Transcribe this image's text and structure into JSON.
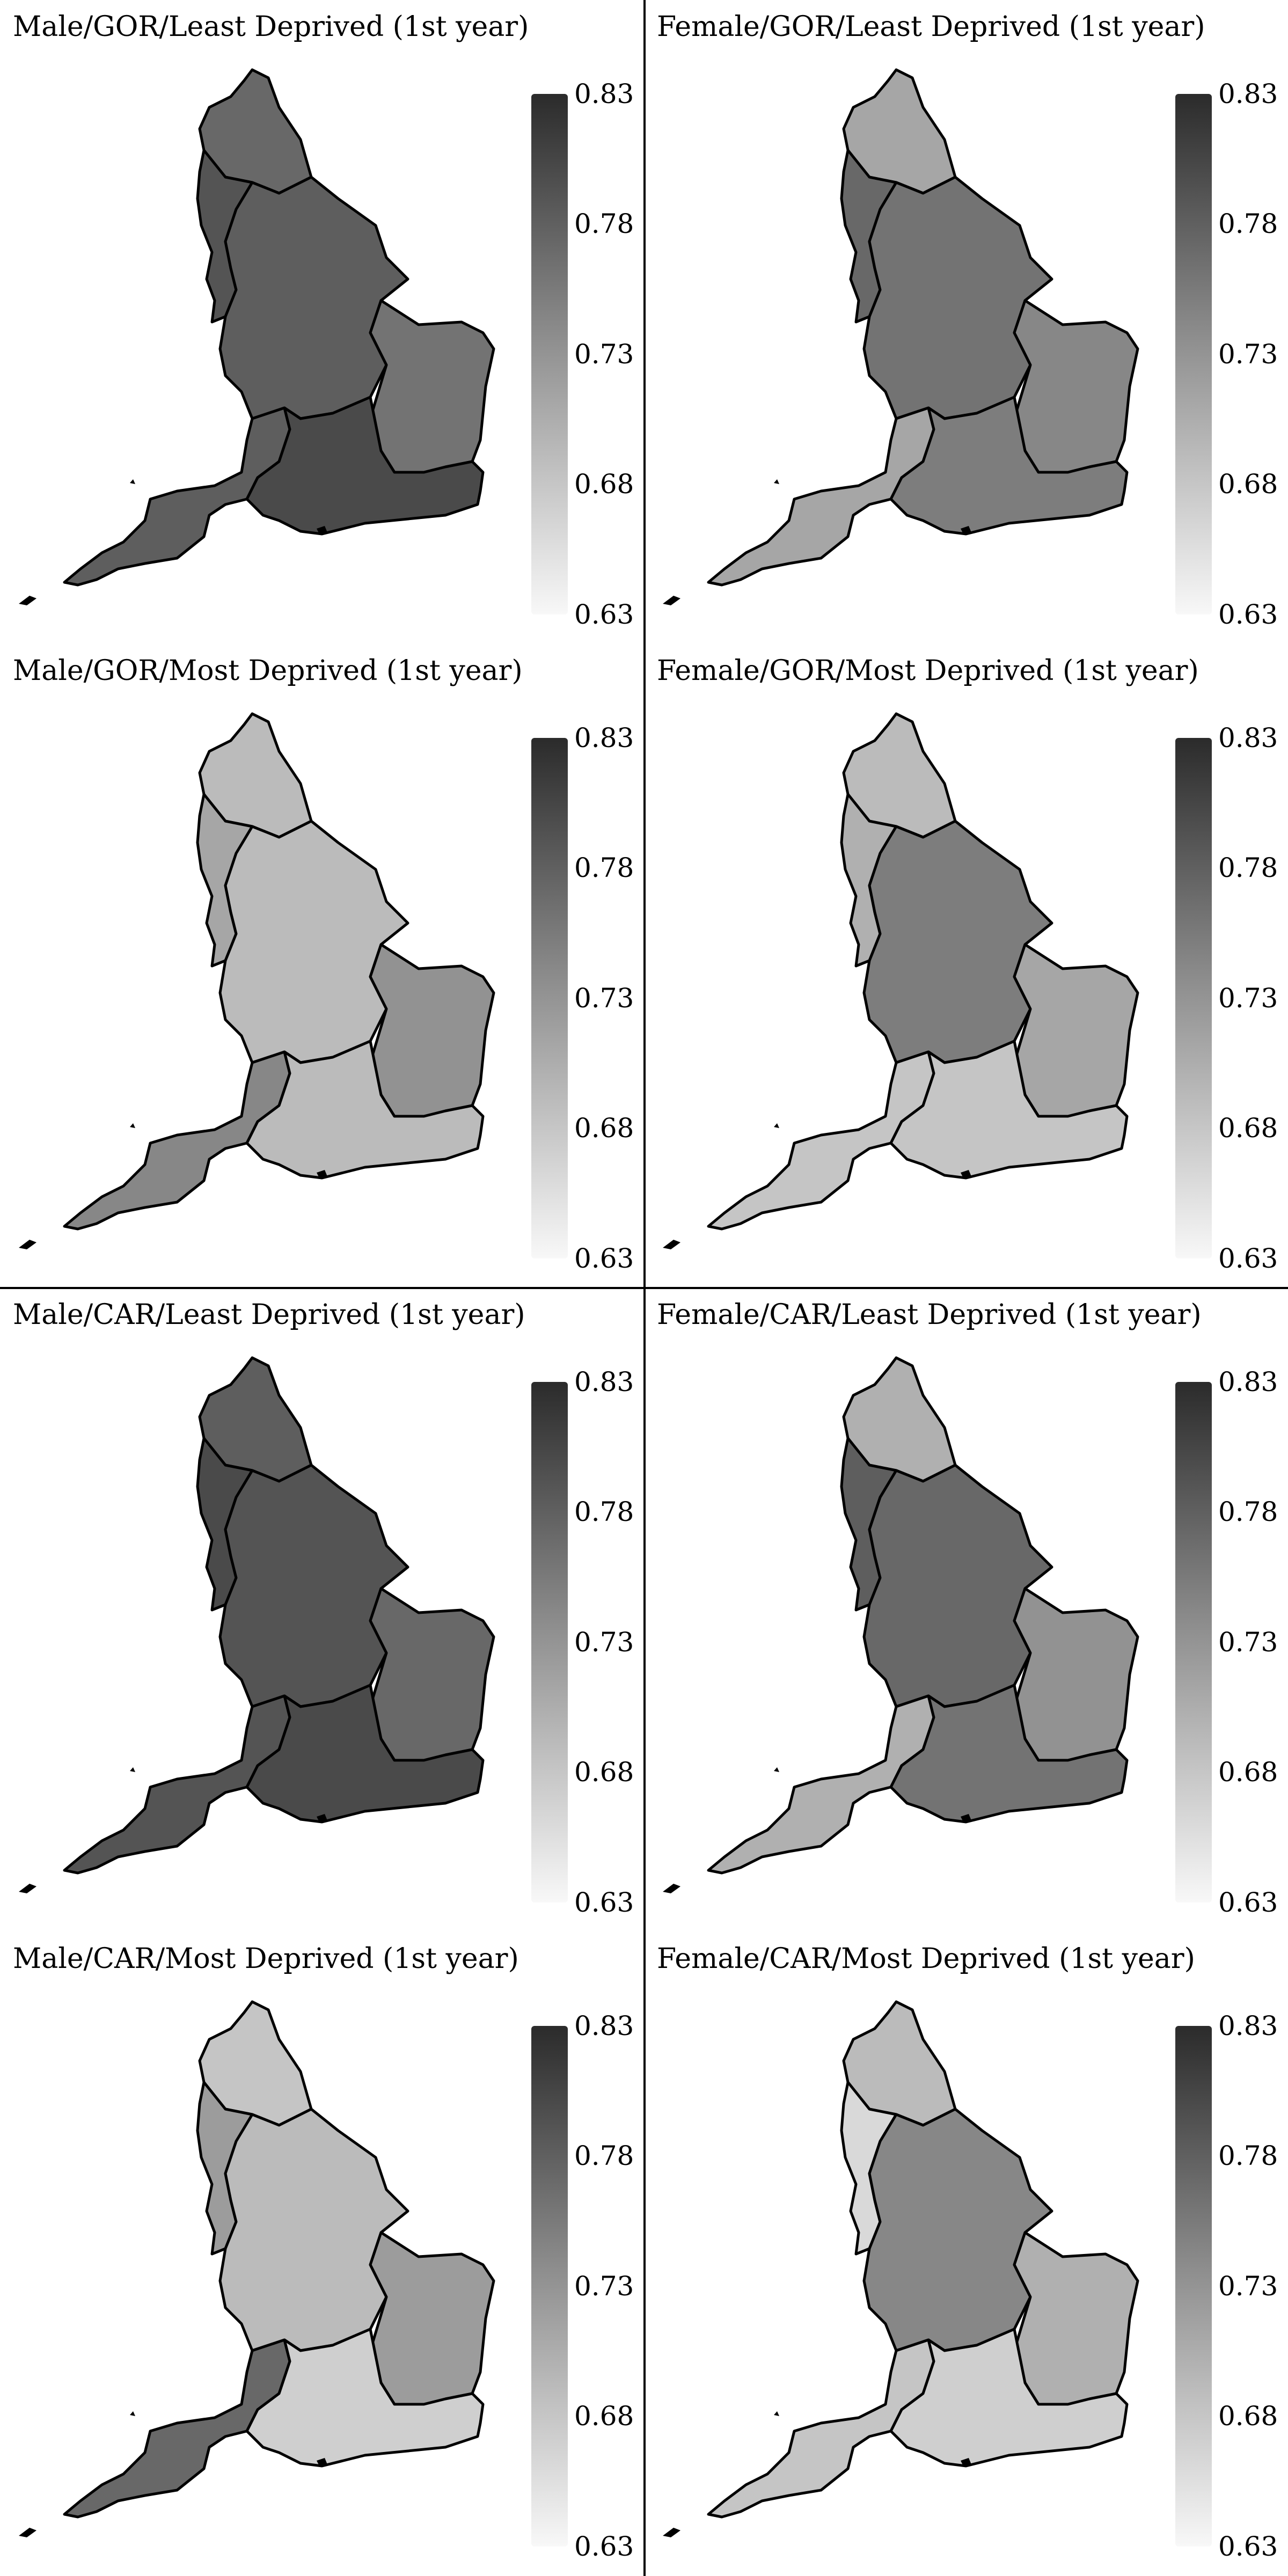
{
  "colorbar": {
    "min": 0.63,
    "max": 0.83,
    "ticks": [
      "0.83",
      "0.78",
      "0.73",
      "0.68",
      "0.63"
    ],
    "colormap": "greyscale, dark = high (#2b2b2b) to light = low (#f8f8f8)"
  },
  "panels": [
    {
      "title": "Male/GOR/Least Deprived (1st year)",
      "values": {
        "north": 0.77,
        "west": 0.79,
        "central": 0.78,
        "east": 0.76,
        "southwest": 0.78,
        "southeast": 0.8
      }
    },
    {
      "title": "Female/GOR/Least Deprived (1st year)",
      "values": {
        "north": 0.71,
        "west": 0.77,
        "central": 0.76,
        "east": 0.74,
        "southwest": 0.71,
        "southeast": 0.75
      }
    },
    {
      "title": "Male/GOR/Most Deprived (1st year)",
      "values": {
        "north": 0.69,
        "west": 0.71,
        "central": 0.69,
        "east": 0.73,
        "southwest": 0.74,
        "southeast": 0.69
      }
    },
    {
      "title": "Female/GOR/Most Deprived (1st year)",
      "values": {
        "north": 0.69,
        "west": 0.7,
        "central": 0.75,
        "east": 0.71,
        "southwest": 0.68,
        "southeast": 0.68
      }
    },
    {
      "title": "Male/CAR/Least Deprived (1st year)",
      "values": {
        "north": 0.78,
        "west": 0.8,
        "central": 0.79,
        "east": 0.77,
        "southwest": 0.79,
        "southeast": 0.8
      }
    },
    {
      "title": "Female/CAR/Least Deprived (1st year)",
      "values": {
        "north": 0.7,
        "west": 0.78,
        "central": 0.77,
        "east": 0.73,
        "southwest": 0.7,
        "southeast": 0.76
      }
    },
    {
      "title": "Male/CAR/Most Deprived (1st year)",
      "values": {
        "north": 0.68,
        "west": 0.72,
        "central": 0.69,
        "east": 0.72,
        "southwest": 0.77,
        "southeast": 0.67
      }
    },
    {
      "title": "Female/CAR/Most Deprived (1st year)",
      "values": {
        "north": 0.69,
        "west": 0.66,
        "central": 0.74,
        "east": 0.7,
        "southwest": 0.68,
        "southeast": 0.67
      }
    }
  ]
}
